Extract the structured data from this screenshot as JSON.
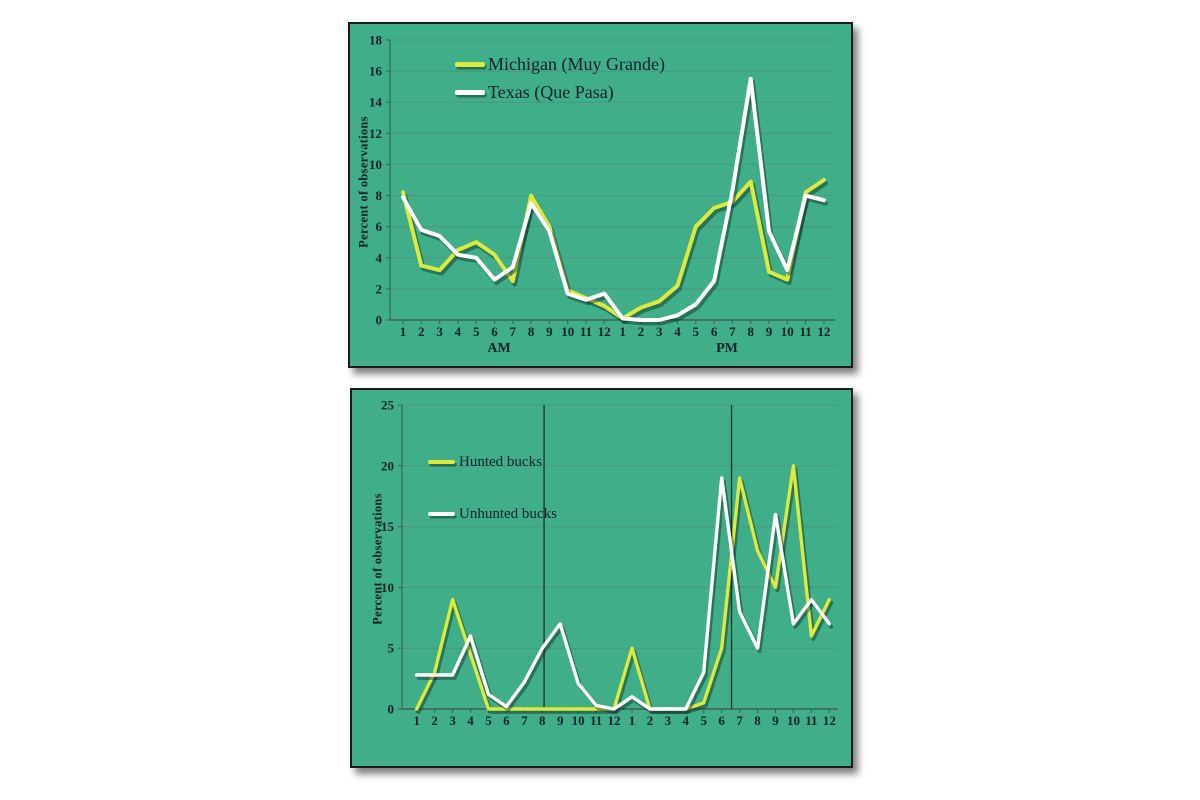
{
  "colors": {
    "page_bg": "#ffffff",
    "panel_bg": "#3fae89",
    "panel_border": "#1b1b1b",
    "grid": "#55897a",
    "axis": "#3d6257",
    "text": "#14222e",
    "reference_line": "#20302b",
    "series_yellow": "#dcea3e",
    "series_white": "#ffffff",
    "line_shadow": "rgba(8,35,28,0.42)"
  },
  "chart_data": [
    {
      "type": "line",
      "name": "ranch-comparison-by-hour",
      "ylabel": "Percent of observations",
      "ymin": 0,
      "ymax": 18,
      "ytick_step": 2,
      "grid": true,
      "legend_position": "top-left-inside",
      "x_categories": [
        "1",
        "2",
        "3",
        "4",
        "5",
        "6",
        "7",
        "8",
        "9",
        "10",
        "11",
        "12",
        "1",
        "2",
        "3",
        "4",
        "5",
        "6",
        "7",
        "8",
        "9",
        "10",
        "11",
        "12"
      ],
      "period_labels": [
        "AM",
        "PM"
      ],
      "series": [
        {
          "name": "Michigan (Muy Grande)",
          "color_key": "series_yellow",
          "values": [
            8.2,
            3.5,
            3.2,
            4.5,
            5.0,
            4.2,
            2.5,
            8.0,
            6.0,
            1.9,
            1.4,
            0.9,
            0.1,
            0.8,
            1.2,
            2.2,
            6.0,
            7.2,
            7.6,
            8.9,
            3.1,
            2.6,
            8.2,
            9.0
          ]
        },
        {
          "name": "Texas (Que Pasa)",
          "color_key": "series_white",
          "values": [
            7.9,
            5.8,
            5.4,
            4.2,
            4.0,
            2.6,
            3.4,
            7.5,
            5.7,
            1.7,
            1.3,
            1.7,
            0.1,
            0.0,
            0.0,
            0.3,
            1.0,
            2.5,
            8.3,
            15.5,
            5.7,
            3.2,
            8.0,
            7.7
          ]
        }
      ]
    },
    {
      "type": "line",
      "name": "hunted-vs-unhunted-bucks-by-hour",
      "ylabel": "Percent of observations",
      "ymin": 0,
      "ymax": 25,
      "ytick_step": 5,
      "grid": true,
      "legend_position": "top-left-inside",
      "x_categories": [
        "1",
        "2",
        "3",
        "4",
        "5",
        "6",
        "7",
        "8",
        "9",
        "10",
        "11",
        "12",
        "1",
        "2",
        "3",
        "4",
        "5",
        "6",
        "7",
        "8",
        "9",
        "10",
        "11",
        "12"
      ],
      "reference_vlines_hour": [
        8.1,
        18.55
      ],
      "series": [
        {
          "name": "Hunted bucks",
          "color_key": "series_yellow",
          "values": [
            0,
            3.0,
            9.0,
            4.5,
            0,
            0,
            0,
            0,
            0,
            0,
            0,
            0,
            5.0,
            0,
            0,
            0,
            0.5,
            5.0,
            19.0,
            13.0,
            10.0,
            20.0,
            6.0,
            9.0
          ]
        },
        {
          "name": "Unhunted bucks",
          "color_key": "series_white",
          "values": [
            2.8,
            2.8,
            2.8,
            6.0,
            1.2,
            0.2,
            2.2,
            5.0,
            7.0,
            2.1,
            0.3,
            0,
            1.0,
            0,
            0,
            0,
            3.0,
            19.0,
            8.0,
            5.0,
            16.0,
            7.0,
            9.0,
            7.0
          ]
        }
      ]
    }
  ]
}
